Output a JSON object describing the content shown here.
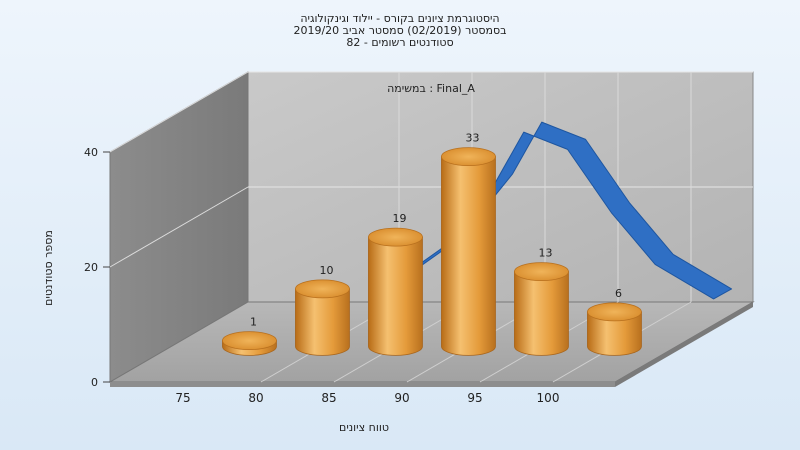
{
  "chart_data": {
    "type": "bar",
    "title_lines": [
      "היסטוגרמת ציונים בקורס - יילוד וגינקולוגיה",
      "בסמסטר (02/2019) סמסטר אביב 2019/20",
      "סטודנטים רשומים - 82"
    ],
    "annotation": "במשימה : Final_A",
    "xlabel": "טווח ציונים",
    "ylabel": "מספר סטודנטים",
    "x_ticks": [
      "75",
      "80",
      "85",
      "90",
      "95",
      "100"
    ],
    "y_ticks": [
      "0",
      "20",
      "40"
    ],
    "ylim": [
      0,
      40
    ],
    "bars": [
      {
        "x": 77.5,
        "value": 1,
        "label": "1"
      },
      {
        "x": 82.5,
        "value": 10,
        "label": "10"
      },
      {
        "x": 87.5,
        "value": 19,
        "label": "19"
      },
      {
        "x": 92.5,
        "value": 33,
        "label": "33"
      },
      {
        "x": 97.5,
        "value": 13,
        "label": "13"
      },
      {
        "x": 102.5,
        "value": 6,
        "label": "6"
      }
    ],
    "curve": [
      {
        "x": 82.5,
        "y": 10
      },
      {
        "x": 87.5,
        "y": 19
      },
      {
        "x": 91,
        "y": 30
      },
      {
        "x": 93,
        "y": 39
      },
      {
        "x": 96,
        "y": 36
      },
      {
        "x": 99,
        "y": 25
      },
      {
        "x": 102,
        "y": 16
      },
      {
        "x": 106,
        "y": 10
      }
    ],
    "colors": {
      "bar": "#e39a3a",
      "curve": "#2f6fc4"
    }
  }
}
